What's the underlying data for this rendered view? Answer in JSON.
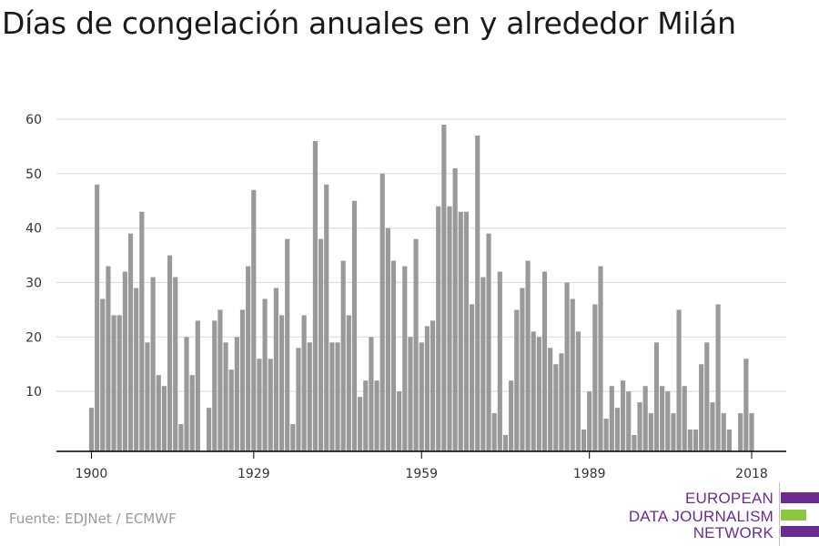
{
  "title": "Días de congelación anuales en y alrededor Milán",
  "source": "Fuente: EDJNet / ECMWF",
  "logo": {
    "lines": [
      "EUROPEAN",
      "DATA JOURNALISM",
      "NETWORK"
    ],
    "text_color": "#6b2c91",
    "bar_colors": [
      "#6b2c91",
      "#8dc63f",
      "#6b2c91"
    ]
  },
  "colors": {
    "bar": "#999999",
    "grid": "#dddddd",
    "axis": "#000000",
    "text": "#333333"
  },
  "chart_data": {
    "type": "bar",
    "title": "Días de congelación anuales en y alrededor Milán",
    "xlabel": "",
    "ylabel": "",
    "x": [
      1900,
      1901,
      1902,
      1903,
      1904,
      1905,
      1906,
      1907,
      1908,
      1909,
      1910,
      1911,
      1912,
      1913,
      1914,
      1915,
      1916,
      1917,
      1918,
      1919,
      1920,
      1921,
      1922,
      1923,
      1924,
      1925,
      1926,
      1927,
      1928,
      1929,
      1930,
      1931,
      1932,
      1933,
      1934,
      1935,
      1936,
      1937,
      1938,
      1939,
      1940,
      1941,
      1942,
      1943,
      1944,
      1945,
      1946,
      1947,
      1948,
      1949,
      1950,
      1951,
      1952,
      1953,
      1954,
      1955,
      1956,
      1957,
      1958,
      1959,
      1960,
      1961,
      1962,
      1963,
      1964,
      1965,
      1966,
      1967,
      1968,
      1969,
      1970,
      1971,
      1972,
      1973,
      1974,
      1975,
      1976,
      1977,
      1978,
      1979,
      1980,
      1981,
      1982,
      1983,
      1984,
      1985,
      1986,
      1987,
      1988,
      1989,
      1990,
      1991,
      1992,
      1993,
      1994,
      1995,
      1996,
      1997,
      1998,
      1999,
      2000,
      2001,
      2002,
      2003,
      2004,
      2005,
      2006,
      2007,
      2008,
      2009,
      2010,
      2011,
      2012,
      2013,
      2014,
      2015,
      2016,
      2017,
      2018
    ],
    "values": [
      7,
      48,
      27,
      33,
      24,
      24,
      32,
      39,
      29,
      43,
      19,
      31,
      13,
      11,
      35,
      31,
      4,
      20,
      13,
      23,
      0,
      7,
      23,
      25,
      19,
      14,
      20,
      25,
      33,
      47,
      16,
      27,
      16,
      29,
      24,
      38,
      4,
      18,
      24,
      19,
      56,
      38,
      48,
      19,
      19,
      34,
      24,
      45,
      9,
      12,
      20,
      12,
      50,
      40,
      34,
      10,
      33,
      20,
      38,
      19,
      22,
      23,
      44,
      59,
      44,
      51,
      43,
      43,
      26,
      57,
      31,
      39,
      6,
      32,
      2,
      12,
      25,
      29,
      34,
      21,
      20,
      32,
      18,
      15,
      17,
      30,
      27,
      21,
      3,
      10,
      26,
      33,
      5,
      11,
      7,
      12,
      10,
      2,
      8,
      11,
      6,
      19,
      11,
      10,
      6,
      25,
      11,
      3,
      3,
      15,
      19,
      8,
      26,
      6,
      3,
      0,
      6,
      16,
      6
    ],
    "ylim": [
      0,
      60
    ],
    "xlim": [
      1900,
      2018
    ],
    "xticks": [
      1900,
      1929,
      1959,
      1989,
      2018
    ],
    "yticks": [
      10,
      20,
      30,
      40,
      50,
      60
    ],
    "grid": true,
    "legend": "none"
  }
}
